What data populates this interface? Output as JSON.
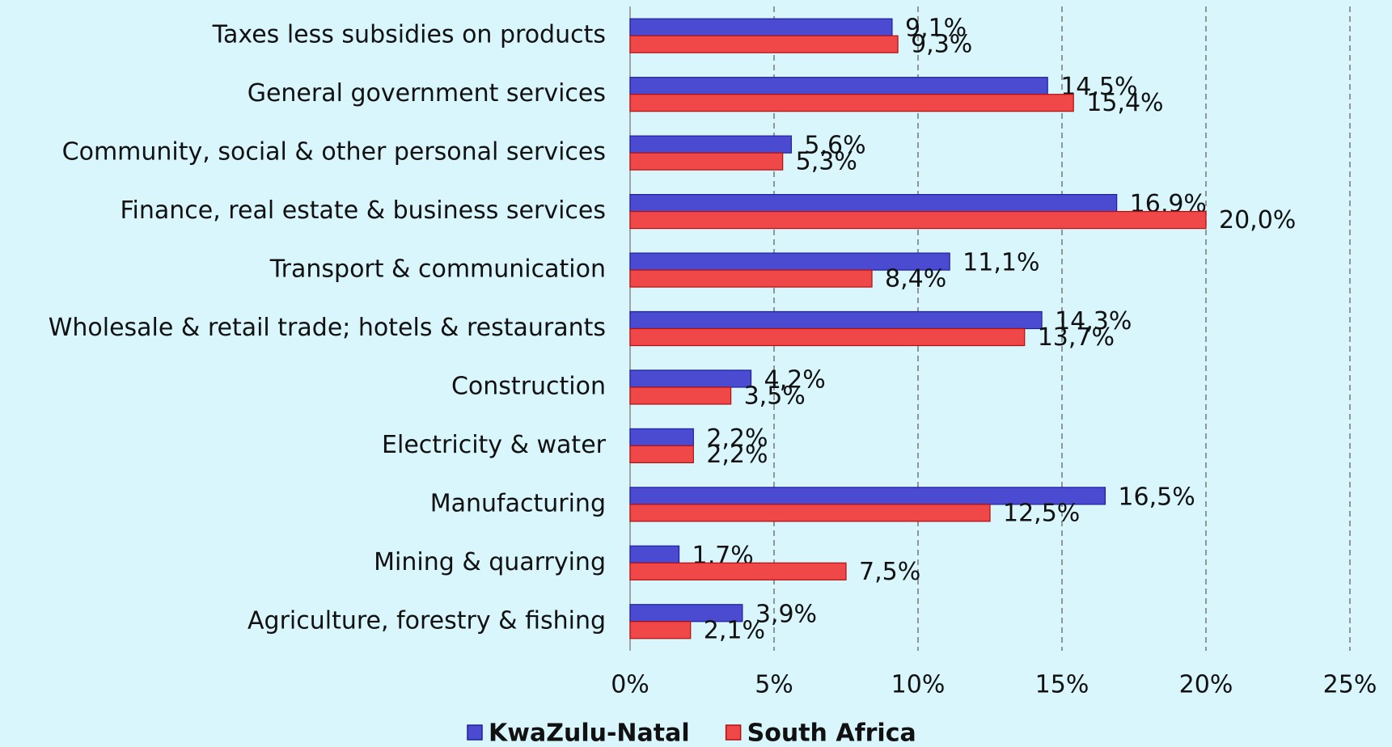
{
  "chart_data": {
    "type": "hbar",
    "categories": [
      "Taxes less subsidies on products",
      "General government services",
      "Community, social & other personal services",
      "Finance, real estate & business services",
      "Transport  & communication",
      "Wholesale & retail trade; hotels & restaurants",
      "Construction",
      "Electricity & water",
      "Manufacturing",
      "Mining & quarrying",
      "Agriculture, forestry & fishing"
    ],
    "series": [
      {
        "name": "KwaZulu-Natal",
        "color": "#4b4bd2",
        "values": [
          9.1,
          14.5,
          5.6,
          16.9,
          11.1,
          14.3,
          4.2,
          2.2,
          16.5,
          1.7,
          3.9
        ],
        "value_labels": [
          "9,1%",
          "14,5%",
          "5,6%",
          "16,9%",
          "11,1%",
          "14,3%",
          "4,2%",
          "2,2%",
          "16,5%",
          "1,7%",
          "3,9%"
        ]
      },
      {
        "name": "South Africa",
        "color": "#f04848",
        "values": [
          9.3,
          15.4,
          5.3,
          20.0,
          8.4,
          13.7,
          3.5,
          2.2,
          12.5,
          7.5,
          2.1
        ],
        "value_labels": [
          "9,3%",
          "15,4%",
          "5,3%",
          "20,0%",
          "8,4%",
          "13,7%",
          "3,5%",
          "2,2%",
          "12,5%",
          "7,5%",
          "2,1%"
        ]
      }
    ],
    "xlim": [
      0,
      25
    ],
    "xticks": [
      {
        "value": 0,
        "label": "0%"
      },
      {
        "value": 5,
        "label": "5%"
      },
      {
        "value": 10,
        "label": "10%"
      },
      {
        "value": 15,
        "label": "15%"
      },
      {
        "value": 20,
        "label": "20%"
      },
      {
        "value": 25,
        "label": "25%"
      }
    ],
    "grid": true,
    "legend": "bottom"
  }
}
